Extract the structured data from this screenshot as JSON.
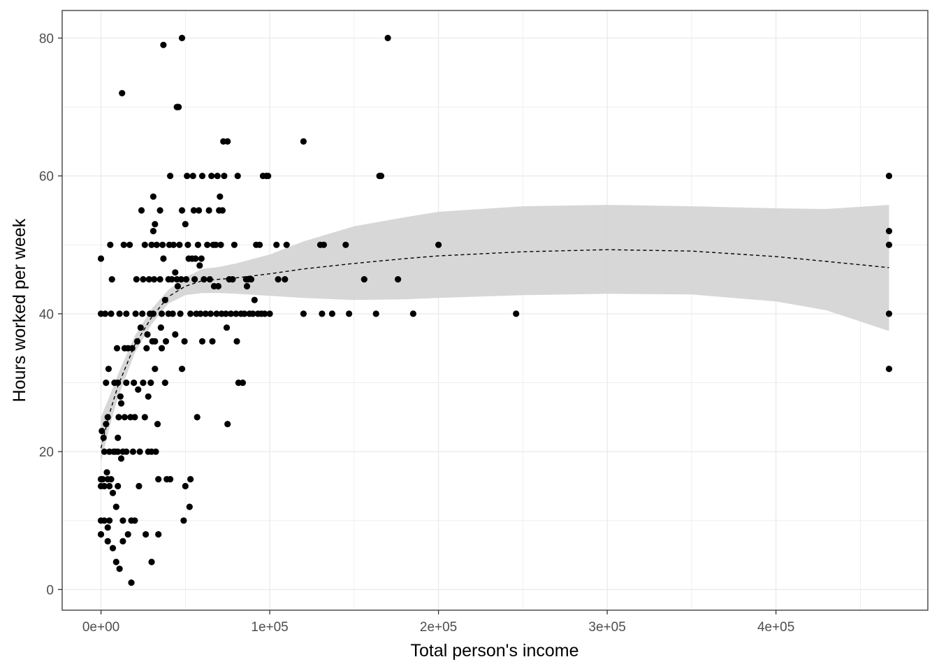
{
  "chart_data": {
    "type": "scatter",
    "xlabel": "Total person's income",
    "ylabel": "Hours worked per week",
    "xlim": [
      -23000,
      490000
    ],
    "ylim": [
      -3,
      84
    ],
    "x_ticks": [
      0,
      100000,
      200000,
      300000,
      400000
    ],
    "x_tick_labels": [
      "0e+00",
      "1e+05",
      "2e+05",
      "3e+05",
      "4e+05"
    ],
    "y_ticks": [
      0,
      20,
      40,
      60,
      80
    ],
    "y_tick_labels": [
      "0",
      "20",
      "40",
      "60",
      "80"
    ],
    "grid": true,
    "theme": "black-and-white panel",
    "colors": {
      "points": "#000000",
      "band": "#d3d3d3",
      "grid": "#ebebeb",
      "trend": "#000000"
    },
    "points": [
      [
        0,
        8
      ],
      [
        0,
        10
      ],
      [
        0,
        16
      ],
      [
        0,
        15
      ],
      [
        0,
        40
      ],
      [
        0,
        48
      ],
      [
        500,
        23
      ],
      [
        1000,
        16
      ],
      [
        1500,
        22
      ],
      [
        2000,
        20
      ],
      [
        2000,
        15
      ],
      [
        2000,
        10
      ],
      [
        2500,
        40
      ],
      [
        3000,
        24
      ],
      [
        3000,
        30
      ],
      [
        3500,
        17
      ],
      [
        4000,
        25
      ],
      [
        4000,
        9
      ],
      [
        4000,
        7
      ],
      [
        4000,
        16
      ],
      [
        4500,
        32
      ],
      [
        5000,
        15
      ],
      [
        5000,
        10
      ],
      [
        5000,
        20
      ],
      [
        5500,
        50
      ],
      [
        6000,
        16
      ],
      [
        6000,
        40
      ],
      [
        6500,
        45
      ],
      [
        7000,
        6
      ],
      [
        7000,
        14
      ],
      [
        7500,
        20
      ],
      [
        8000,
        30
      ],
      [
        8500,
        20
      ],
      [
        9000,
        4
      ],
      [
        9000,
        12
      ],
      [
        9500,
        35
      ],
      [
        10000,
        22
      ],
      [
        10000,
        15
      ],
      [
        10000,
        30
      ],
      [
        10000,
        20
      ],
      [
        10500,
        25
      ],
      [
        11000,
        3
      ],
      [
        11000,
        40
      ],
      [
        11500,
        28
      ],
      [
        12000,
        19
      ],
      [
        12000,
        27
      ],
      [
        12500,
        72
      ],
      [
        13000,
        20
      ],
      [
        13000,
        10
      ],
      [
        13000,
        7
      ],
      [
        13500,
        50
      ],
      [
        14000,
        35
      ],
      [
        14000,
        25
      ],
      [
        15000,
        20
      ],
      [
        15000,
        40
      ],
      [
        15000,
        30
      ],
      [
        16000,
        8
      ],
      [
        16000,
        35
      ],
      [
        17000,
        50
      ],
      [
        17500,
        25
      ],
      [
        18000,
        1
      ],
      [
        18000,
        10
      ],
      [
        18500,
        35
      ],
      [
        19000,
        20
      ],
      [
        19500,
        30
      ],
      [
        20000,
        25
      ],
      [
        20000,
        10
      ],
      [
        20500,
        40
      ],
      [
        21000,
        45
      ],
      [
        21500,
        36
      ],
      [
        22000,
        29
      ],
      [
        22500,
        15
      ],
      [
        23000,
        20
      ],
      [
        23500,
        38
      ],
      [
        24000,
        55
      ],
      [
        24500,
        40
      ],
      [
        25000,
        45
      ],
      [
        25000,
        30
      ],
      [
        26000,
        50
      ],
      [
        26000,
        25
      ],
      [
        26500,
        8
      ],
      [
        27000,
        35
      ],
      [
        27500,
        37
      ],
      [
        28000,
        28
      ],
      [
        28000,
        20
      ],
      [
        28500,
        45
      ],
      [
        29000,
        40
      ],
      [
        29500,
        30
      ],
      [
        30000,
        50
      ],
      [
        30000,
        20
      ],
      [
        30000,
        4
      ],
      [
        30500,
        36
      ],
      [
        31000,
        57
      ],
      [
        31000,
        52
      ],
      [
        31000,
        40
      ],
      [
        31500,
        45
      ],
      [
        32000,
        53
      ],
      [
        32000,
        36
      ],
      [
        32000,
        32
      ],
      [
        32500,
        20
      ],
      [
        33000,
        50
      ],
      [
        33500,
        24
      ],
      [
        34000,
        8
      ],
      [
        34000,
        16
      ],
      [
        35000,
        55
      ],
      [
        35000,
        45
      ],
      [
        35500,
        38
      ],
      [
        36000,
        35
      ],
      [
        36000,
        40
      ],
      [
        36500,
        50
      ],
      [
        37000,
        48
      ],
      [
        37000,
        79
      ],
      [
        38000,
        42
      ],
      [
        38000,
        30
      ],
      [
        38500,
        36
      ],
      [
        39000,
        16
      ],
      [
        40000,
        40
      ],
      [
        40000,
        45
      ],
      [
        40500,
        50
      ],
      [
        41000,
        16
      ],
      [
        41000,
        60
      ],
      [
        42000,
        45
      ],
      [
        42500,
        40
      ],
      [
        43000,
        50
      ],
      [
        44000,
        37
      ],
      [
        44000,
        46
      ],
      [
        45000,
        70
      ],
      [
        45000,
        45
      ],
      [
        45500,
        44
      ],
      [
        46000,
        70
      ],
      [
        46500,
        50
      ],
      [
        47000,
        40
      ],
      [
        47500,
        45
      ],
      [
        48000,
        32
      ],
      [
        48000,
        55
      ],
      [
        48000,
        80
      ],
      [
        49000,
        10
      ],
      [
        49500,
        36
      ],
      [
        50000,
        15
      ],
      [
        50000,
        53
      ],
      [
        50500,
        45
      ],
      [
        51000,
        60
      ],
      [
        51500,
        50
      ],
      [
        52000,
        48
      ],
      [
        52500,
        12
      ],
      [
        53000,
        16
      ],
      [
        53000,
        40
      ],
      [
        54000,
        48
      ],
      [
        54500,
        60
      ],
      [
        55000,
        55
      ],
      [
        55500,
        45
      ],
      [
        56000,
        48
      ],
      [
        56500,
        40
      ],
      [
        57000,
        25
      ],
      [
        57500,
        50
      ],
      [
        58000,
        55
      ],
      [
        58500,
        47
      ],
      [
        59000,
        40
      ],
      [
        59500,
        48
      ],
      [
        60000,
        36
      ],
      [
        60000,
        60
      ],
      [
        61000,
        45
      ],
      [
        62000,
        40
      ],
      [
        63000,
        50
      ],
      [
        64000,
        55
      ],
      [
        64500,
        45
      ],
      [
        65000,
        40
      ],
      [
        65500,
        60
      ],
      [
        66000,
        36
      ],
      [
        66500,
        50
      ],
      [
        67000,
        44
      ],
      [
        68000,
        50
      ],
      [
        68500,
        40
      ],
      [
        69000,
        60
      ],
      [
        69500,
        44
      ],
      [
        70000,
        55
      ],
      [
        70500,
        57
      ],
      [
        71000,
        50
      ],
      [
        71500,
        40
      ],
      [
        72000,
        55
      ],
      [
        72500,
        65
      ],
      [
        73000,
        60
      ],
      [
        74000,
        40
      ],
      [
        74500,
        38
      ],
      [
        75000,
        24
      ],
      [
        75000,
        65
      ],
      [
        76000,
        45
      ],
      [
        77000,
        40
      ],
      [
        78000,
        45
      ],
      [
        79000,
        50
      ],
      [
        80000,
        40
      ],
      [
        80500,
        36
      ],
      [
        81000,
        60
      ],
      [
        81500,
        30
      ],
      [
        83000,
        40
      ],
      [
        84000,
        30
      ],
      [
        85000,
        40
      ],
      [
        86000,
        45
      ],
      [
        86500,
        44
      ],
      [
        87000,
        45
      ],
      [
        88000,
        40
      ],
      [
        89000,
        45
      ],
      [
        90000,
        40
      ],
      [
        91000,
        42
      ],
      [
        92000,
        50
      ],
      [
        93000,
        40
      ],
      [
        94000,
        50
      ],
      [
        95000,
        40
      ],
      [
        96000,
        60
      ],
      [
        97000,
        40
      ],
      [
        98000,
        60
      ],
      [
        99000,
        60
      ],
      [
        100000,
        40
      ],
      [
        104000,
        50
      ],
      [
        105000,
        45
      ],
      [
        109000,
        45
      ],
      [
        110000,
        50
      ],
      [
        120000,
        65
      ],
      [
        120000,
        40
      ],
      [
        130000,
        50
      ],
      [
        131000,
        40
      ],
      [
        132000,
        50
      ],
      [
        137000,
        40
      ],
      [
        145000,
        50
      ],
      [
        147000,
        40
      ],
      [
        156000,
        45
      ],
      [
        163000,
        40
      ],
      [
        165000,
        60
      ],
      [
        166000,
        60
      ],
      [
        170000,
        80
      ],
      [
        176000,
        45
      ],
      [
        185000,
        40
      ],
      [
        200000,
        50
      ],
      [
        246000,
        40
      ],
      [
        467000,
        60
      ],
      [
        467000,
        52
      ],
      [
        467000,
        50
      ],
      [
        467000,
        40
      ],
      [
        467000,
        32
      ]
    ],
    "smooth_fit": {
      "method": "smoothed trend with confidence band",
      "x": [
        0,
        5000,
        10000,
        20000,
        30000,
        40000,
        50000,
        60000,
        70000,
        80000,
        100000,
        120000,
        150000,
        180000,
        200000,
        250000,
        300000,
        350000,
        400000,
        430000,
        467000
      ],
      "y": [
        20.5,
        25.5,
        29.5,
        35.5,
        39.5,
        42.5,
        44.0,
        44.8,
        45.0,
        45.2,
        45.8,
        46.5,
        47.3,
        48.0,
        48.4,
        49.0,
        49.3,
        49.1,
        48.3,
        47.6,
        46.7
      ],
      "lower": [
        18.5,
        23.5,
        27.8,
        34.3,
        38.5,
        41.5,
        42.7,
        43.0,
        43.0,
        42.9,
        42.6,
        42.3,
        42.0,
        42.1,
        42.3,
        42.7,
        42.9,
        42.8,
        41.8,
        40.5,
        37.5
      ],
      "upper": [
        25.0,
        28.0,
        31.2,
        36.8,
        40.7,
        43.5,
        45.3,
        46.5,
        46.8,
        47.3,
        48.6,
        50.5,
        52.7,
        54.0,
        54.8,
        55.6,
        55.8,
        55.6,
        55.3,
        55.2,
        55.8
      ]
    }
  }
}
